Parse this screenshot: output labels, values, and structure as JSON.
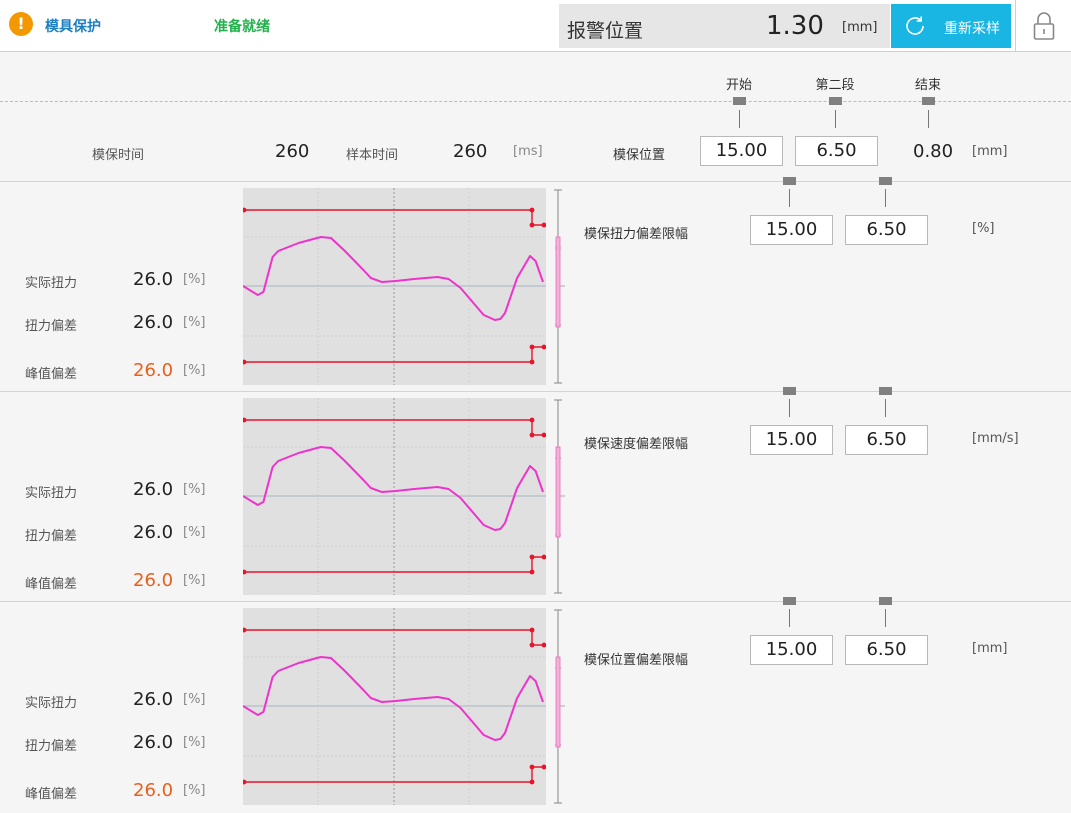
{
  "header": {
    "title": "模具保护",
    "status": "准备就绪",
    "alarm_label": "报警位置",
    "alarm_value": "1.30",
    "alarm_unit": "[mm]",
    "resample_label": "重新采样"
  },
  "settings": {
    "col_start": "开始",
    "col_second": "第二段",
    "col_end": "结束",
    "mold_protect_time_label": "模保时间",
    "mold_protect_time_value": "260",
    "sample_time_label": "样本时间",
    "sample_time_value": "260",
    "time_unit": "[ms]",
    "position_label": "模保位置",
    "position_start": "15.00",
    "position_second": "6.50",
    "position_end": "0.80",
    "position_unit": "[mm]"
  },
  "panels": [
    {
      "actual_torque_label": "实际扭力",
      "actual_torque_value": "26.0",
      "actual_torque_unit": "[%]",
      "torque_dev_label": "扭力偏差",
      "torque_dev_value": "26.0",
      "torque_dev_unit": "[%]",
      "peak_dev_label": "峰值偏差",
      "peak_dev_value": "26.0",
      "peak_dev_unit": "[%]",
      "limit_label": "模保扭力偏差限幅",
      "limit_start": "15.00",
      "limit_second": "6.50",
      "limit_unit": "[%]"
    },
    {
      "actual_torque_label": "实际扭力",
      "actual_torque_value": "26.0",
      "actual_torque_unit": "[%]",
      "torque_dev_label": "扭力偏差",
      "torque_dev_value": "26.0",
      "torque_dev_unit": "[%]",
      "peak_dev_label": "峰值偏差",
      "peak_dev_value": "26.0",
      "peak_dev_unit": "[%]",
      "limit_label": "模保速度偏差限幅",
      "limit_start": "15.00",
      "limit_second": "6.50",
      "limit_unit": "[mm/s]"
    },
    {
      "actual_torque_label": "实际扭力",
      "actual_torque_value": "26.0",
      "actual_torque_unit": "[%]",
      "torque_dev_label": "扭力偏差",
      "torque_dev_value": "26.0",
      "torque_dev_unit": "[%]",
      "peak_dev_label": "峰值偏差",
      "peak_dev_value": "26.0",
      "peak_dev_unit": "[%]",
      "limit_label": "模保位置偏差限幅",
      "limit_start": "15.00",
      "limit_second": "6.50",
      "limit_unit": "[mm]"
    }
  ],
  "colors": {
    "accent": "#19b5e3",
    "title_blue": "#1d7fc4",
    "status_green": "#22b14c",
    "warning_orange": "#f39800",
    "peak_orange": "#e8601c",
    "curve_magenta": "#ee33cc",
    "limit_red": "#e8142a"
  },
  "icons": {
    "warning": "exclamation-circle-icon",
    "resample": "refresh-icon",
    "lock": "padlock-icon"
  }
}
